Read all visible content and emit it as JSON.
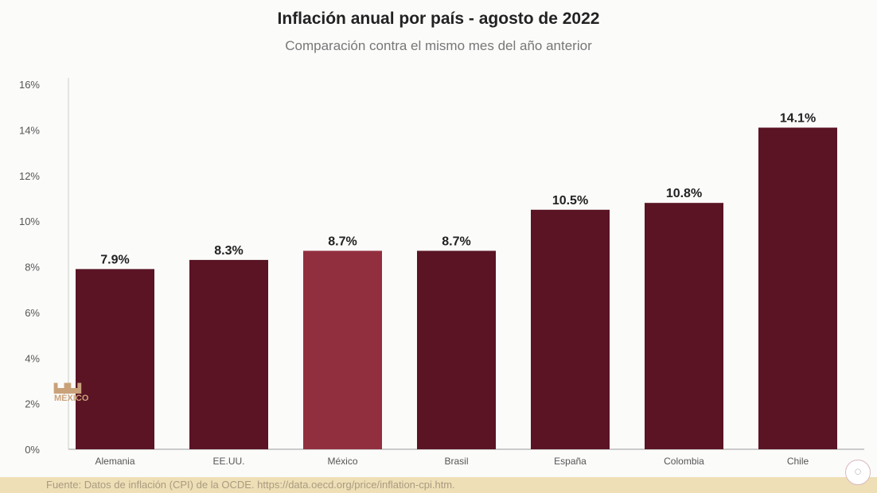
{
  "chart_data": {
    "type": "bar",
    "title": "Inflación anual por país - agosto de 2022",
    "subtitle": "Comparación contra el mismo mes del año anterior",
    "categories": [
      "Alemania",
      "EE.UU.",
      "México",
      "Brasil",
      "España",
      "Colombia",
      "Chile"
    ],
    "values": [
      7.9,
      8.3,
      8.7,
      8.7,
      10.5,
      10.8,
      14.1
    ],
    "data_labels": [
      "7.9%",
      "8.3%",
      "8.7%",
      "8.7%",
      "10.5%",
      "10.8%",
      "14.1%"
    ],
    "ylim": [
      0,
      16
    ],
    "yticks": [
      "0%",
      "2%",
      "4%",
      "6%",
      "8%",
      "10%",
      "12%",
      "14%",
      "16%"
    ],
    "grid": false,
    "colors": {
      "default": "#5a1424",
      "highlight": "#922f3e"
    },
    "highlight_category": "México"
  },
  "footer": {
    "source": "Fuente: Datos de inflación (CPI) de la OCDE. https://data.oecd.org/price/inflation-cpi.htm."
  },
  "logo": {
    "text": "GOBIERNO DE MÉXICO"
  }
}
